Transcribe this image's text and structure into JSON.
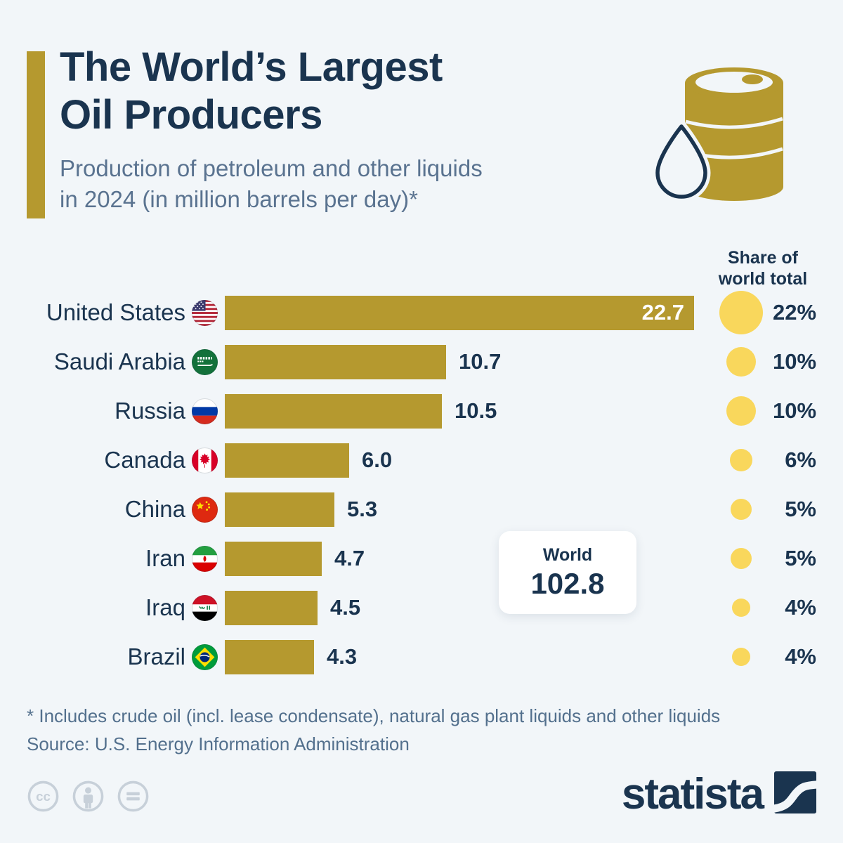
{
  "colors": {
    "background": "#F2F6F9",
    "navy": "#1A344F",
    "bar_gold": "#B5992F",
    "circle_yellow": "#F9D75C",
    "subtitle_gray": "#5A7390",
    "license_gray": "#C7D0D9",
    "white": "#FFFFFF"
  },
  "header": {
    "title": "The World’s Largest\nOil Producers",
    "subtitle": "Production of petroleum and other liquids\nin 2024 (in million barrels per day)*",
    "barrel_icon": "oil-barrel-with-droplet-icon"
  },
  "share_header": "Share of\nworld total",
  "chart_data": {
    "type": "bar",
    "orientation": "horizontal",
    "title": "The World's Largest Oil Producers",
    "subtitle": "Production of petroleum and other liquids in 2024 (in million barrels per day)*",
    "unit": "million barrels per day",
    "xlim": [
      0,
      22.7
    ],
    "grid": false,
    "rows": [
      {
        "country": "United States",
        "flag": "us",
        "value": 22.7,
        "value_label": "22.7",
        "share_pct": 22,
        "share_label": "22%",
        "value_inside": true
      },
      {
        "country": "Saudi Arabia",
        "flag": "sa",
        "value": 10.7,
        "value_label": "10.7",
        "share_pct": 10,
        "share_label": "10%",
        "value_inside": false
      },
      {
        "country": "Russia",
        "flag": "ru",
        "value": 10.5,
        "value_label": "10.5",
        "share_pct": 10,
        "share_label": "10%",
        "value_inside": false
      },
      {
        "country": "Canada",
        "flag": "ca",
        "value": 6.0,
        "value_label": "6.0",
        "share_pct": 6,
        "share_label": "6%",
        "value_inside": false
      },
      {
        "country": "China",
        "flag": "cn",
        "value": 5.3,
        "value_label": "5.3",
        "share_pct": 5,
        "share_label": "5%",
        "value_inside": false
      },
      {
        "country": "Iran",
        "flag": "ir",
        "value": 4.7,
        "value_label": "4.7",
        "share_pct": 5,
        "share_label": "5%",
        "value_inside": false
      },
      {
        "country": "Iraq",
        "flag": "iq",
        "value": 4.5,
        "value_label": "4.5",
        "share_pct": 4,
        "share_label": "4%",
        "value_inside": false
      },
      {
        "country": "Brazil",
        "flag": "br",
        "value": 4.3,
        "value_label": "4.3",
        "share_pct": 4,
        "share_label": "4%",
        "value_inside": false
      }
    ],
    "world": {
      "label": "World",
      "value": "102.8"
    }
  },
  "footer": {
    "footnote": "* Includes crude oil (incl. lease condensate), natural gas plant liquids and other liquids",
    "source": "Source: U.S. Energy Information Administration"
  },
  "branding": {
    "logo_text": "statista",
    "license_icons": [
      "cc-icon",
      "cc-by-person-icon",
      "cc-nd-equals-icon"
    ]
  }
}
